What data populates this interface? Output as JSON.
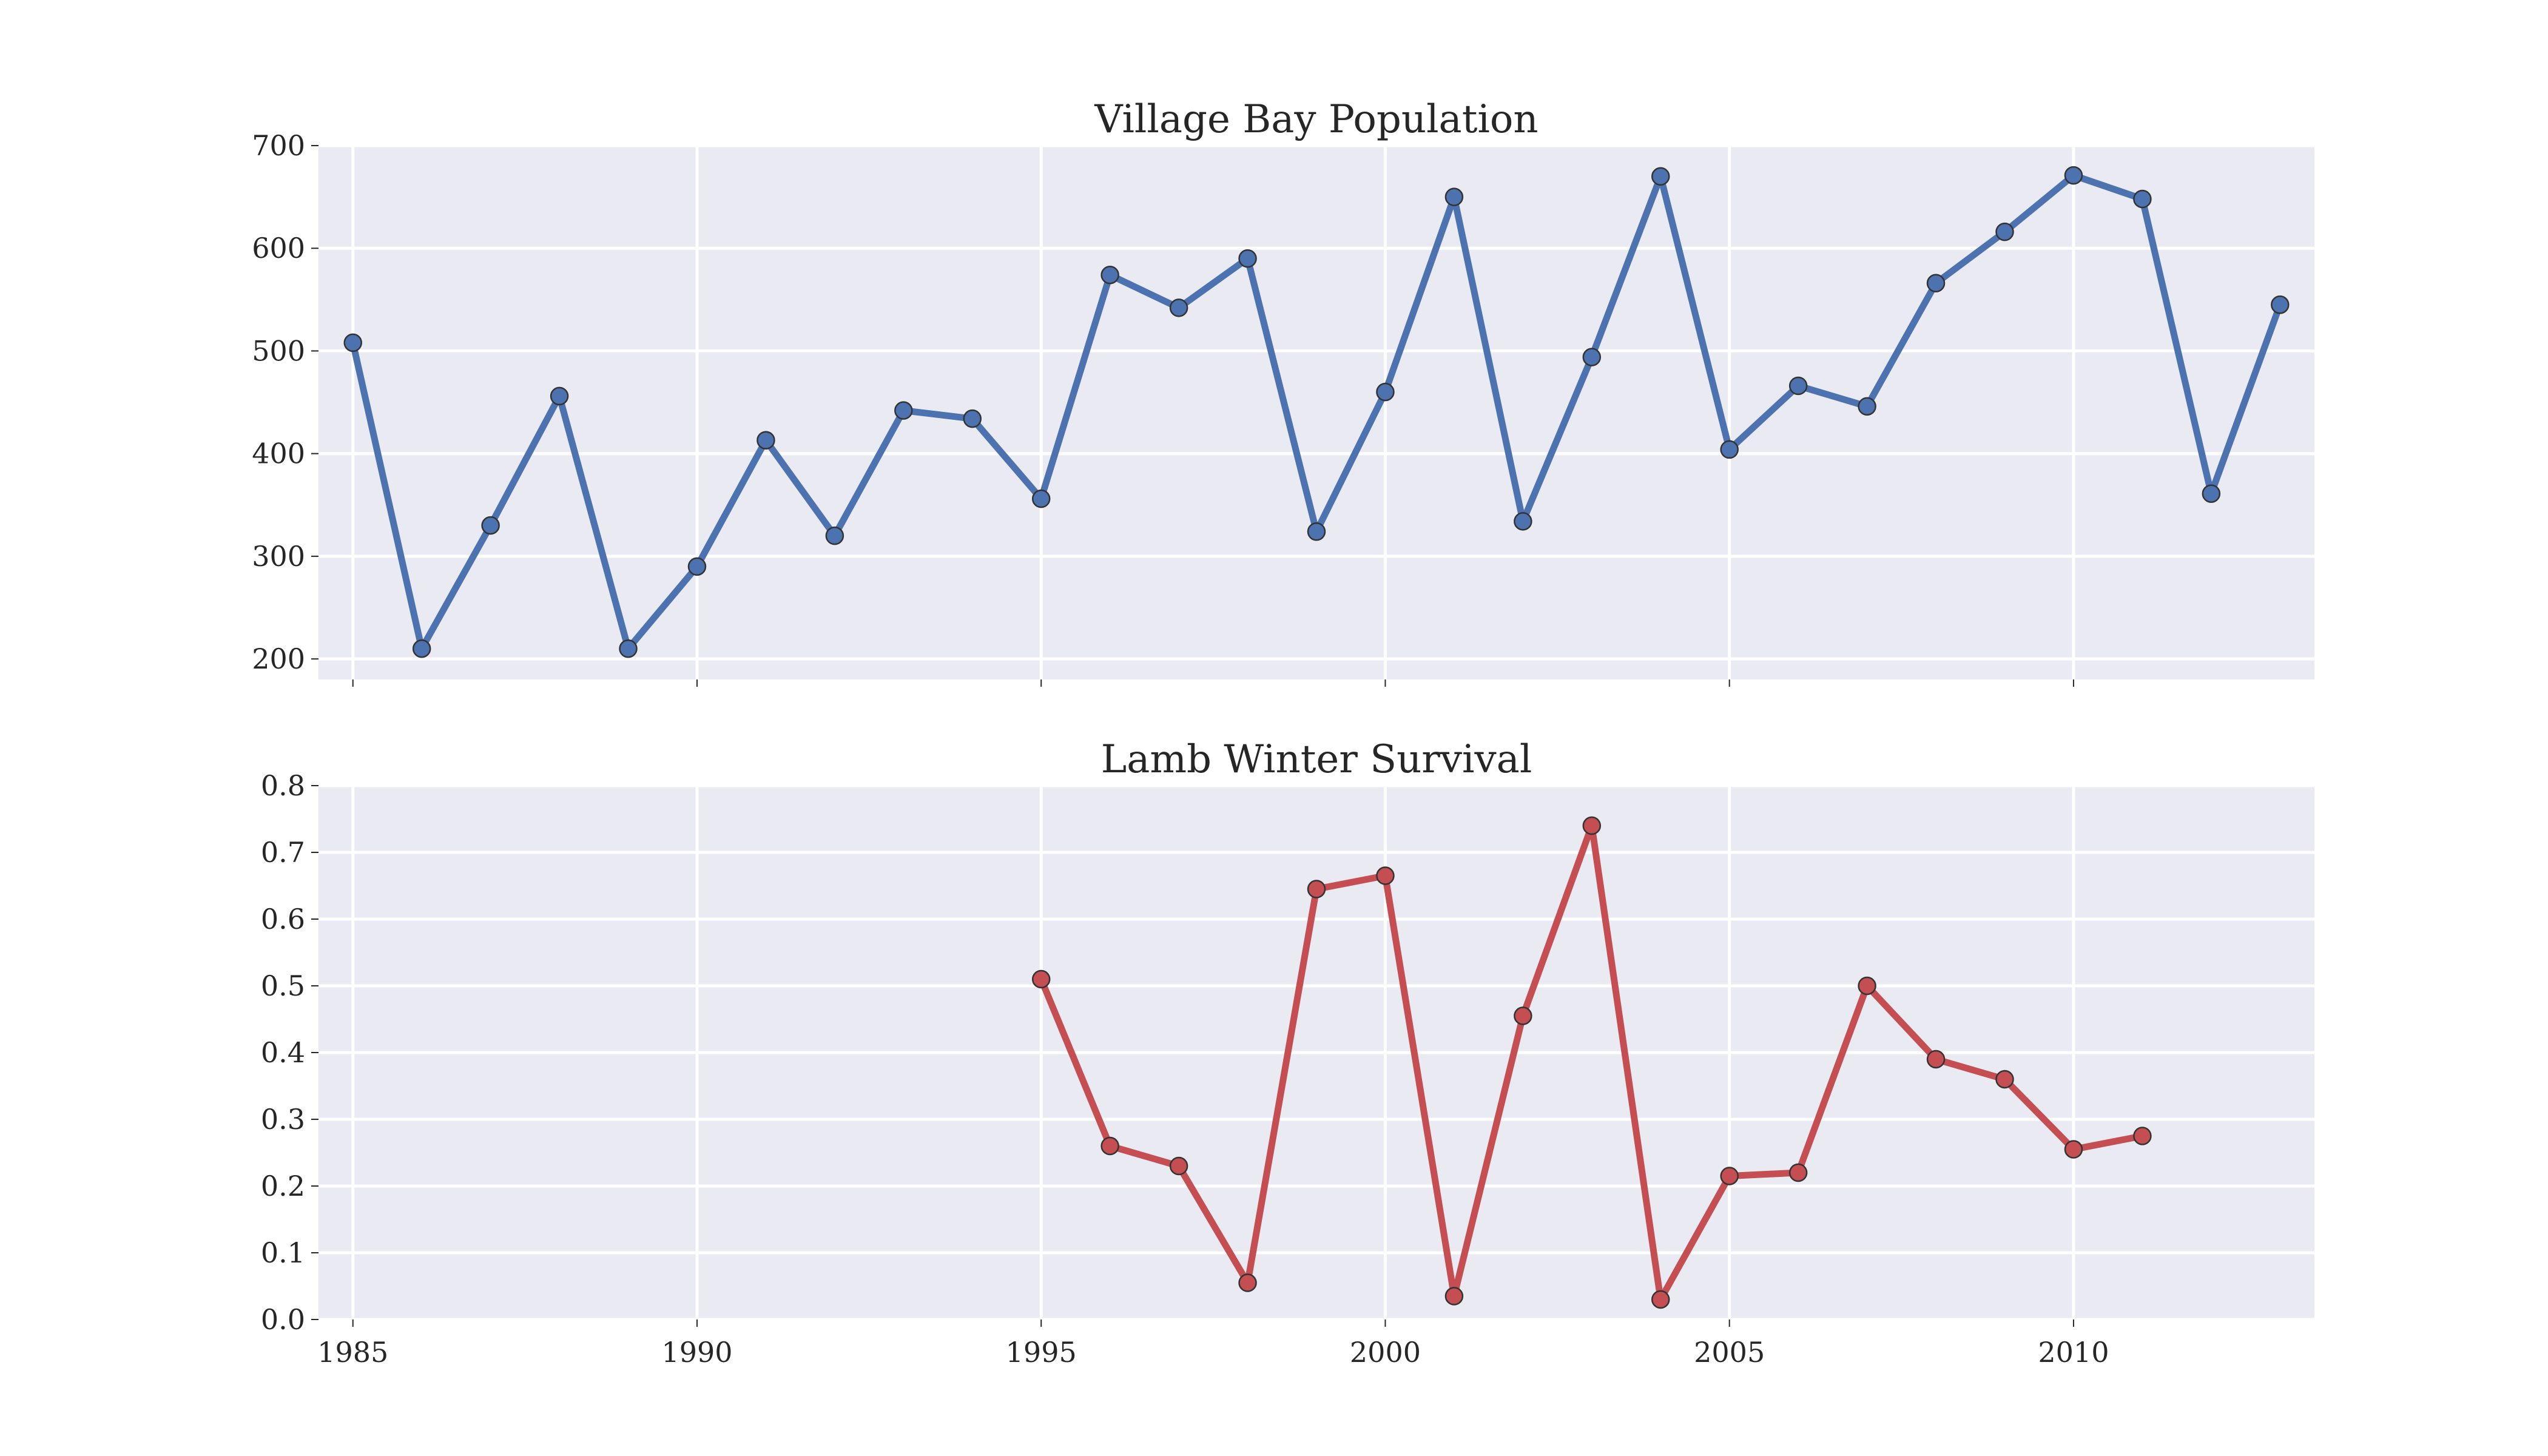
{
  "chart_data": [
    {
      "type": "line",
      "title": "Village Bay Population",
      "xlabel": "",
      "ylabel": "",
      "xlim": [
        1984.5,
        2013.5
      ],
      "ylim": [
        180,
        700
      ],
      "xticks": [
        1985,
        1990,
        1995,
        2000,
        2005,
        2010
      ],
      "show_xtick_labels": false,
      "yticks": [
        200,
        300,
        400,
        500,
        600,
        700
      ],
      "ytick_labels": [
        "200",
        "300",
        "400",
        "500",
        "600",
        "700"
      ],
      "grid": true,
      "color": "#4c72b0",
      "series": [
        {
          "x": [
            1985,
            1986,
            1987,
            1988,
            1989,
            1990,
            1991,
            1992,
            1993,
            1994,
            1995,
            1996,
            1997,
            1998,
            1999,
            2000,
            2001,
            2002,
            2003,
            2004,
            2005,
            2006,
            2007,
            2008,
            2009,
            2010,
            2011,
            2012,
            2013
          ],
          "y": [
            508,
            210,
            330,
            456,
            210,
            290,
            413,
            320,
            442,
            434,
            356,
            574,
            542,
            590,
            324,
            460,
            650,
            334,
            494,
            670,
            404,
            466,
            446,
            566,
            616,
            671,
            648,
            361,
            545
          ]
        }
      ]
    },
    {
      "type": "line",
      "title": "Lamb Winter Survival",
      "xlabel": "",
      "ylabel": "",
      "xlim": [
        1984.5,
        2013.5
      ],
      "ylim": [
        0.0,
        0.8
      ],
      "xticks": [
        1985,
        1990,
        1995,
        2000,
        2005,
        2010
      ],
      "xtick_labels": [
        "1985",
        "1990",
        "1995",
        "2000",
        "2005",
        "2010"
      ],
      "show_xtick_labels": true,
      "yticks": [
        0.0,
        0.1,
        0.2,
        0.3,
        0.4,
        0.5,
        0.6,
        0.7,
        0.8
      ],
      "ytick_labels": [
        "0.0",
        "0.1",
        "0.2",
        "0.3",
        "0.4",
        "0.5",
        "0.6",
        "0.7",
        "0.8"
      ],
      "grid": true,
      "color": "#c44e52",
      "series": [
        {
          "x": [
            1995,
            1996,
            1997,
            1998,
            1999,
            2000,
            2001,
            2002,
            2003,
            2004,
            2005,
            2006,
            2007,
            2008,
            2009,
            2010,
            2011
          ],
          "y": [
            0.51,
            0.26,
            0.23,
            0.055,
            0.645,
            0.665,
            0.035,
            0.455,
            0.74,
            0.03,
            0.215,
            0.22,
            0.5,
            0.39,
            0.36,
            0.255,
            0.275
          ]
        }
      ]
    }
  ]
}
